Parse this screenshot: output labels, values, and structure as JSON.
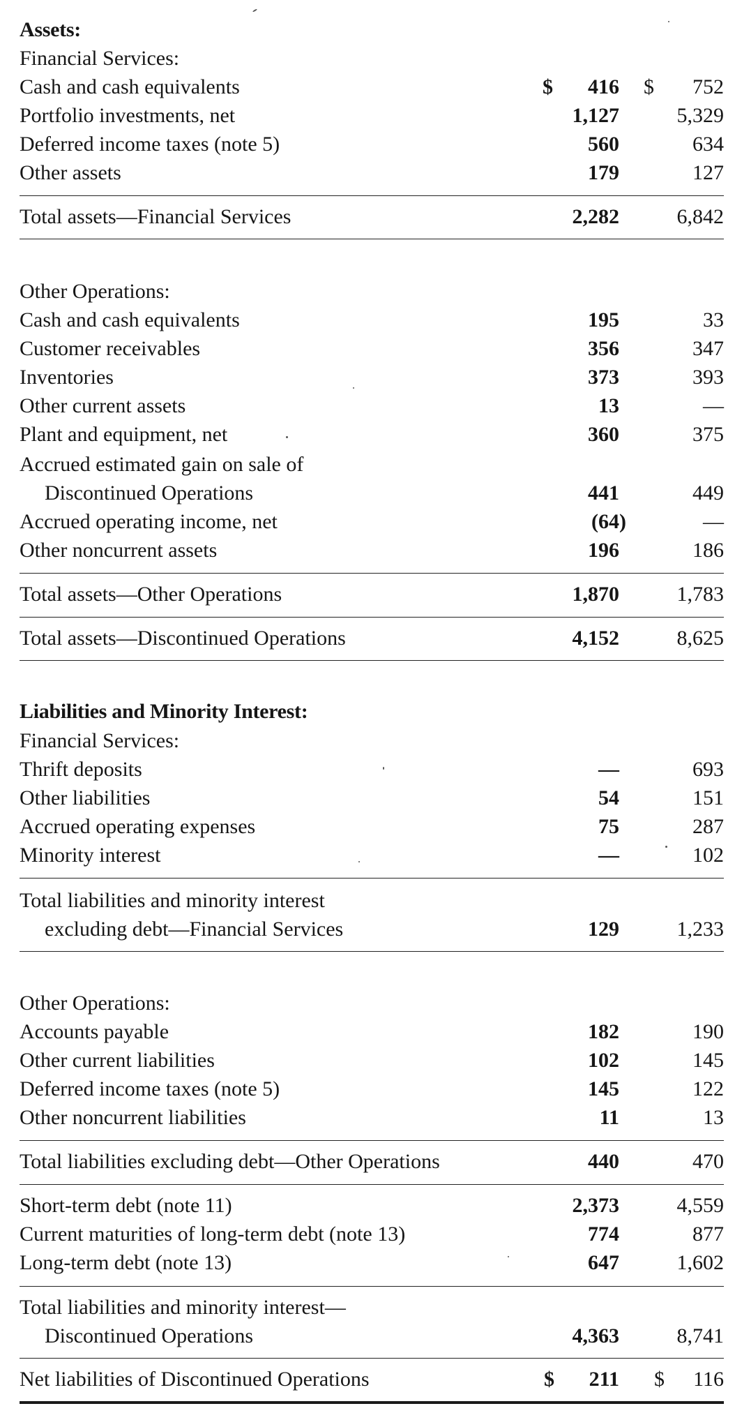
{
  "assets": {
    "heading": "Assets:",
    "financial": {
      "subheading": "Financial Services:",
      "rows": [
        {
          "label": "Cash and cash equivalents",
          "v1": "416",
          "v2": "752",
          "cur1": "$",
          "cur2": "$"
        },
        {
          "label": "Portfolio investments, net",
          "v1": "1,127",
          "v2": "5,329"
        },
        {
          "label": "Deferred income taxes (note 5)",
          "v1": "560",
          "v2": "634"
        },
        {
          "label": "Other assets",
          "v1": "179",
          "v2": "127"
        }
      ],
      "total": {
        "label": "Total assets—Financial Services",
        "v1": "2,282",
        "v2": "6,842"
      }
    },
    "other": {
      "subheading": "Other Operations:",
      "rows": [
        {
          "label": "Cash and cash equivalents",
          "v1": "195",
          "v2": "33"
        },
        {
          "label": "Customer receivables",
          "v1": "356",
          "v2": "347"
        },
        {
          "label": "Inventories",
          "v1": "373",
          "v2": "393"
        },
        {
          "label": "Other current assets",
          "v1": "13",
          "v2": "—"
        },
        {
          "label": "Plant and equipment, net",
          "v1": "360",
          "v2": "375"
        },
        {
          "label": "Accrued estimated gain on sale of",
          "label2": "Discontinued Operations",
          "v1": "441",
          "v2": "449"
        },
        {
          "label": "Accrued operating income, net",
          "v1": "(64)",
          "v2": "—"
        },
        {
          "label": "Other noncurrent assets",
          "v1": "196",
          "v2": "186"
        }
      ],
      "total": {
        "label": "Total assets—Other Operations",
        "v1": "1,870",
        "v2": "1,783"
      }
    },
    "total_discontinued": {
      "label": "Total assets—Discontinued Operations",
      "v1": "4,152",
      "v2": "8,625"
    }
  },
  "liabilities": {
    "heading": "Liabilities and Minority Interest:",
    "financial": {
      "subheading": "Financial Services:",
      "rows": [
        {
          "label": "Thrift deposits",
          "v1": "—",
          "v2": "693"
        },
        {
          "label": "Other liabilities",
          "v1": "54",
          "v2": "151"
        },
        {
          "label": "Accrued operating expenses",
          "v1": "75",
          "v2": "287"
        },
        {
          "label": "Minority interest",
          "v1": "—",
          "v2": "102"
        }
      ],
      "total": {
        "label": "Total liabilities and minority interest",
        "label2": "excluding debt—Financial Services",
        "v1": "129",
        "v2": "1,233"
      }
    },
    "other": {
      "subheading": "Other Operations:",
      "rows": [
        {
          "label": "Accounts payable",
          "v1": "182",
          "v2": "190"
        },
        {
          "label": "Other current liabilities",
          "v1": "102",
          "v2": "145"
        },
        {
          "label": "Deferred income taxes (note 5)",
          "v1": "145",
          "v2": "122"
        },
        {
          "label": "Other noncurrent liabilities",
          "v1": "11",
          "v2": "13"
        }
      ],
      "total": {
        "label": "Total liabilities excluding debt—Other Operations",
        "v1": "440",
        "v2": "470"
      }
    },
    "debt": [
      {
        "label": "Short-term debt (note 11)",
        "v1": "2,373",
        "v2": "4,559"
      },
      {
        "label": "Current maturities of long-term debt (note 13)",
        "v1": "774",
        "v2": "877"
      },
      {
        "label": "Long-term debt (note 13)",
        "v1": "647",
        "v2": "1,602"
      }
    ],
    "total_discontinued": {
      "label": "Total liabilities and minority interest—",
      "label2": "Discontinued Operations",
      "v1": "4,363",
      "v2": "8,741"
    },
    "net": {
      "label": "Net liabilities of Discontinued Operations",
      "v1": "211",
      "v2": "116",
      "cur1": "$",
      "cur2": "$"
    }
  }
}
